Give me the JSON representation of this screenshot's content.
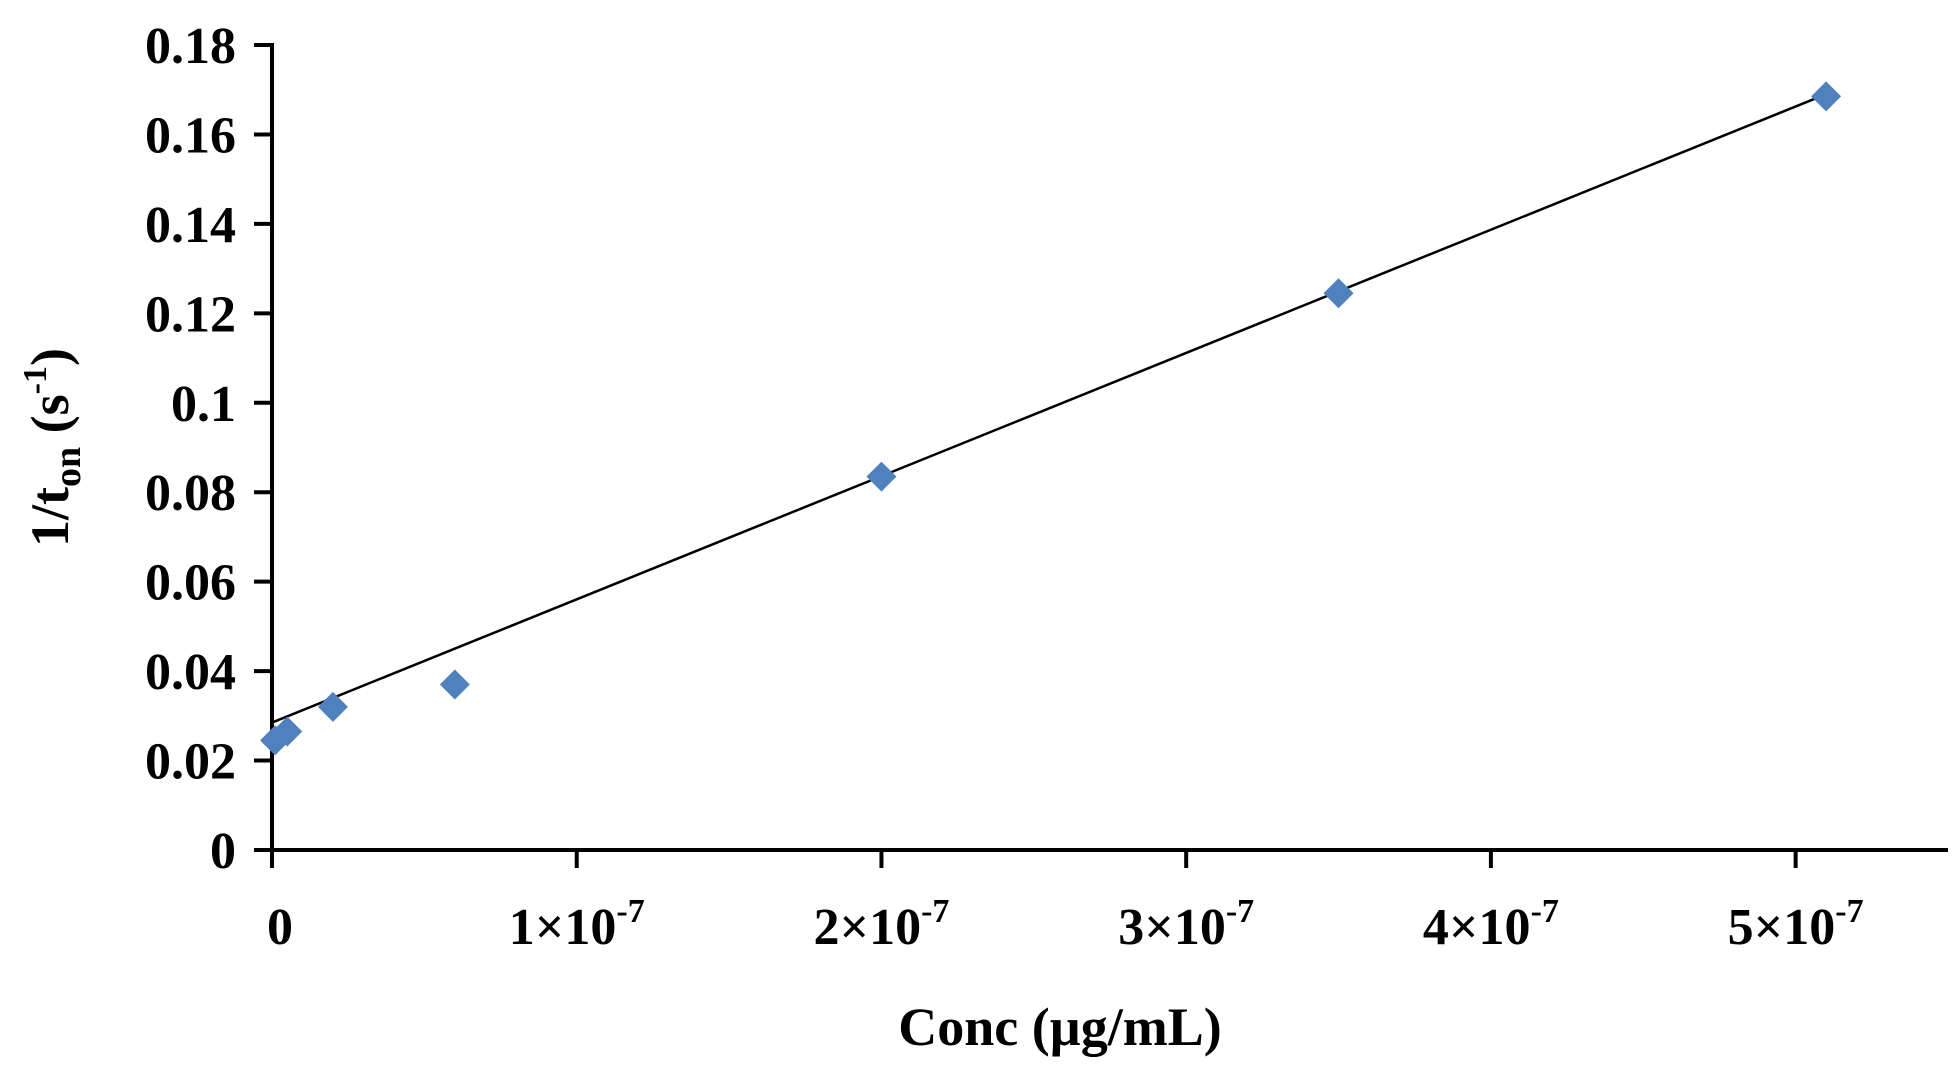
{
  "chart_data": {
    "type": "scatter",
    "title": "",
    "xlabel": "Conc (µg/mL)",
    "ylabel": {
      "prefix": "1/t",
      "subscript": "on",
      "open": " (s",
      "superscript": "-1",
      "close": ")"
    },
    "xlim": [
      0,
      5.5e-07
    ],
    "ylim": [
      0,
      0.18
    ],
    "x_ticks": [
      {
        "value": 0,
        "label": "0"
      },
      {
        "value": 1e-07,
        "mantissa": "1",
        "times": "×10",
        "exponent": "-7"
      },
      {
        "value": 2e-07,
        "mantissa": "2",
        "times": "×10",
        "exponent": "-7"
      },
      {
        "value": 3e-07,
        "mantissa": "3",
        "times": "×10",
        "exponent": "-7"
      },
      {
        "value": 4e-07,
        "mantissa": "4",
        "times": "×10",
        "exponent": "-7"
      },
      {
        "value": 5e-07,
        "mantissa": "5",
        "times": "×10",
        "exponent": "-7"
      }
    ],
    "y_ticks": [
      "0",
      "0.02",
      "0.04",
      "0.06",
      "0.08",
      "0.1",
      "0.12",
      "0.14",
      "0.16",
      "0.18"
    ],
    "series": [
      {
        "marker": "diamond",
        "color": "#4F81BD",
        "x": [
          1e-09,
          5e-09,
          2e-08,
          6e-08,
          2e-07,
          3.5e-07,
          5.1e-07
        ],
        "y": [
          0.0245,
          0.0265,
          0.032,
          0.037,
          0.0835,
          0.1245,
          0.1685
        ]
      }
    ],
    "trendline": {
      "kind": "linear",
      "color": "#000000",
      "x": [
        0,
        5.1e-07
      ],
      "y": [
        0.0285,
        0.169
      ]
    },
    "grid": false,
    "legend": "none"
  }
}
